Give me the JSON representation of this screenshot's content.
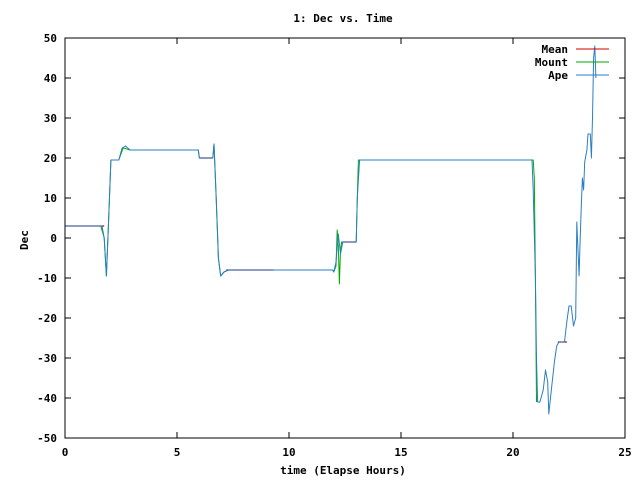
{
  "chart_data": {
    "type": "line",
    "title": "1: Dec vs. Time",
    "xlabel": "time (Elapse Hours)",
    "ylabel": "Dec",
    "xlim": [
      0,
      25
    ],
    "ylim": [
      -50,
      50
    ],
    "xticks": [
      0,
      5,
      10,
      15,
      20,
      25
    ],
    "yticks": [
      -50,
      -40,
      -30,
      -20,
      -10,
      0,
      10,
      20,
      30,
      40,
      50
    ],
    "grid": false,
    "legend_position": "top-right",
    "series": [
      {
        "name": "Mean",
        "color": "#cc0000",
        "segments": [
          [
            [
              0,
              3
            ],
            [
              1.75,
              3
            ]
          ],
          [
            [
              6.0,
              20
            ],
            [
              6.6,
              20
            ]
          ],
          [
            [
              7.2,
              -8
            ],
            [
              9.3,
              -8
            ]
          ],
          [
            [
              12.4,
              -1
            ],
            [
              13.0,
              -1
            ]
          ],
          [
            [
              22.0,
              -26
            ],
            [
              22.4,
              -26
            ]
          ]
        ]
      },
      {
        "name": "Mount",
        "color": "#00aa00",
        "points": [
          [
            0,
            3
          ],
          [
            1.6,
            3
          ],
          [
            1.75,
            0
          ],
          [
            1.85,
            -9.5
          ],
          [
            1.95,
            5
          ],
          [
            2.05,
            19.5
          ],
          [
            2.4,
            19.5
          ],
          [
            2.6,
            22.5
          ],
          [
            2.9,
            22
          ],
          [
            5.95,
            22
          ],
          [
            6.0,
            20
          ],
          [
            6.6,
            20
          ],
          [
            6.65,
            23.5
          ],
          [
            6.75,
            10
          ],
          [
            6.85,
            -5
          ],
          [
            6.95,
            -9.5
          ],
          [
            7.1,
            -8.5
          ],
          [
            7.3,
            -8
          ],
          [
            11.95,
            -8
          ],
          [
            12.0,
            -8.5
          ],
          [
            12.1,
            -7
          ],
          [
            12.15,
            2
          ],
          [
            12.2,
            -2
          ],
          [
            12.25,
            -11.5
          ],
          [
            12.3,
            -3
          ],
          [
            12.35,
            -1
          ],
          [
            13.0,
            -1
          ],
          [
            13.05,
            10
          ],
          [
            13.1,
            19.5
          ],
          [
            20.9,
            19.5
          ],
          [
            20.95,
            15
          ],
          [
            21.0,
            -10
          ],
          [
            21.05,
            -41
          ]
        ]
      },
      {
        "name": "Ape",
        "color": "#2a7ec4",
        "points": [
          [
            0,
            3
          ],
          [
            1.65,
            3
          ],
          [
            1.75,
            0
          ],
          [
            1.85,
            -9.5
          ],
          [
            1.95,
            5
          ],
          [
            2.05,
            19.5
          ],
          [
            2.4,
            19.5
          ],
          [
            2.55,
            22.5
          ],
          [
            2.7,
            23
          ],
          [
            2.9,
            22
          ],
          [
            5.95,
            22
          ],
          [
            6.0,
            20
          ],
          [
            6.6,
            20
          ],
          [
            6.65,
            23.5
          ],
          [
            6.75,
            10
          ],
          [
            6.85,
            -5
          ],
          [
            6.95,
            -9.5
          ],
          [
            7.1,
            -8.5
          ],
          [
            7.3,
            -8
          ],
          [
            11.95,
            -8
          ],
          [
            12.0,
            -8.5
          ],
          [
            12.1,
            -6
          ],
          [
            12.2,
            1
          ],
          [
            12.3,
            -4
          ],
          [
            12.4,
            -1
          ],
          [
            13.0,
            -1
          ],
          [
            13.05,
            10
          ],
          [
            13.15,
            19.5
          ],
          [
            20.85,
            19.5
          ],
          [
            20.9,
            12
          ],
          [
            21.0,
            -10
          ],
          [
            21.05,
            -30
          ],
          [
            21.1,
            -41
          ],
          [
            21.2,
            -41
          ],
          [
            21.35,
            -38
          ],
          [
            21.45,
            -33
          ],
          [
            21.55,
            -36
          ],
          [
            21.6,
            -44
          ],
          [
            21.75,
            -36
          ],
          [
            21.85,
            -31
          ],
          [
            21.95,
            -27
          ],
          [
            22.05,
            -26
          ],
          [
            22.3,
            -26
          ],
          [
            22.4,
            -21
          ],
          [
            22.5,
            -17
          ],
          [
            22.6,
            -17
          ],
          [
            22.7,
            -22
          ],
          [
            22.8,
            -20
          ],
          [
            22.85,
            4
          ],
          [
            22.9,
            -3
          ],
          [
            22.95,
            -9.5
          ],
          [
            23.0,
            0
          ],
          [
            23.05,
            8
          ],
          [
            23.1,
            15
          ],
          [
            23.15,
            12
          ],
          [
            23.2,
            19
          ],
          [
            23.3,
            22
          ],
          [
            23.35,
            26
          ],
          [
            23.45,
            26
          ],
          [
            23.5,
            20
          ],
          [
            23.55,
            30
          ],
          [
            23.6,
            45
          ],
          [
            23.65,
            48
          ],
          [
            23.7,
            40
          ]
        ]
      }
    ]
  }
}
